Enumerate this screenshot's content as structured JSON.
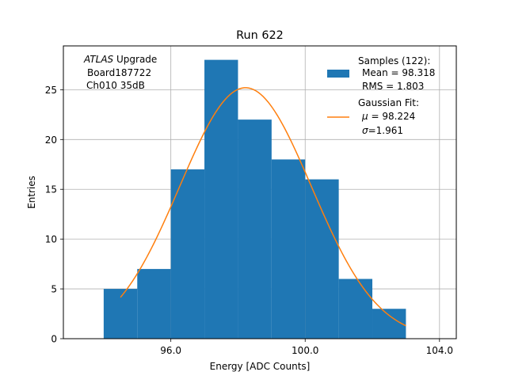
{
  "chart_data": {
    "type": "bar",
    "title": "Run 622",
    "xlabel": "Energy [ADC Counts]",
    "ylabel": "Entries",
    "xlim": [
      92.8,
      104.5
    ],
    "ylim": [
      0,
      29.4
    ],
    "xticks": [
      96.0,
      100.0,
      104.0
    ],
    "xtick_labels": [
      "96.0",
      "100.0",
      "104.0"
    ],
    "yticks": [
      0,
      5,
      10,
      15,
      20,
      25
    ],
    "ytick_labels": [
      "0",
      "5",
      "10",
      "15",
      "20",
      "25"
    ],
    "grid": true,
    "bins": [
      {
        "x0": 94.0,
        "x1": 95.0,
        "count": 5
      },
      {
        "x0": 95.0,
        "x1": 96.0,
        "count": 7
      },
      {
        "x0": 96.0,
        "x1": 97.0,
        "count": 17
      },
      {
        "x0": 97.0,
        "x1": 98.0,
        "count": 28
      },
      {
        "x0": 98.0,
        "x1": 99.0,
        "count": 22
      },
      {
        "x0": 99.0,
        "x1": 100.0,
        "count": 18
      },
      {
        "x0": 100.0,
        "x1": 101.0,
        "count": 16
      },
      {
        "x0": 101.0,
        "x1": 102.0,
        "count": 6
      },
      {
        "x0": 102.0,
        "x1": 103.0,
        "count": 3
      }
    ],
    "fit": {
      "amplitude": 25.2,
      "mu": 98.224,
      "sigma": 1.961,
      "x_range": [
        94.5,
        103.0
      ]
    },
    "colors": {
      "histogram": "#1f77b4",
      "fit": "#ff7f0e",
      "grid": "#b0b0b0"
    },
    "legend_position": "top-right",
    "annotation": {
      "atlas": "ATLAS",
      "upgrade": " Upgrade",
      "board": "Board187722",
      "channel": "Ch010 35dB"
    },
    "legend": {
      "samples_title": "Samples (122):",
      "mean": "Mean = 98.318",
      "rms": "RMS = 1.803",
      "fit_title": "Gaussian Fit:",
      "mu_symbol": "μ",
      "mu_value": " = 98.224",
      "sigma_symbol": "σ",
      "sigma_value": "=1.961"
    }
  }
}
